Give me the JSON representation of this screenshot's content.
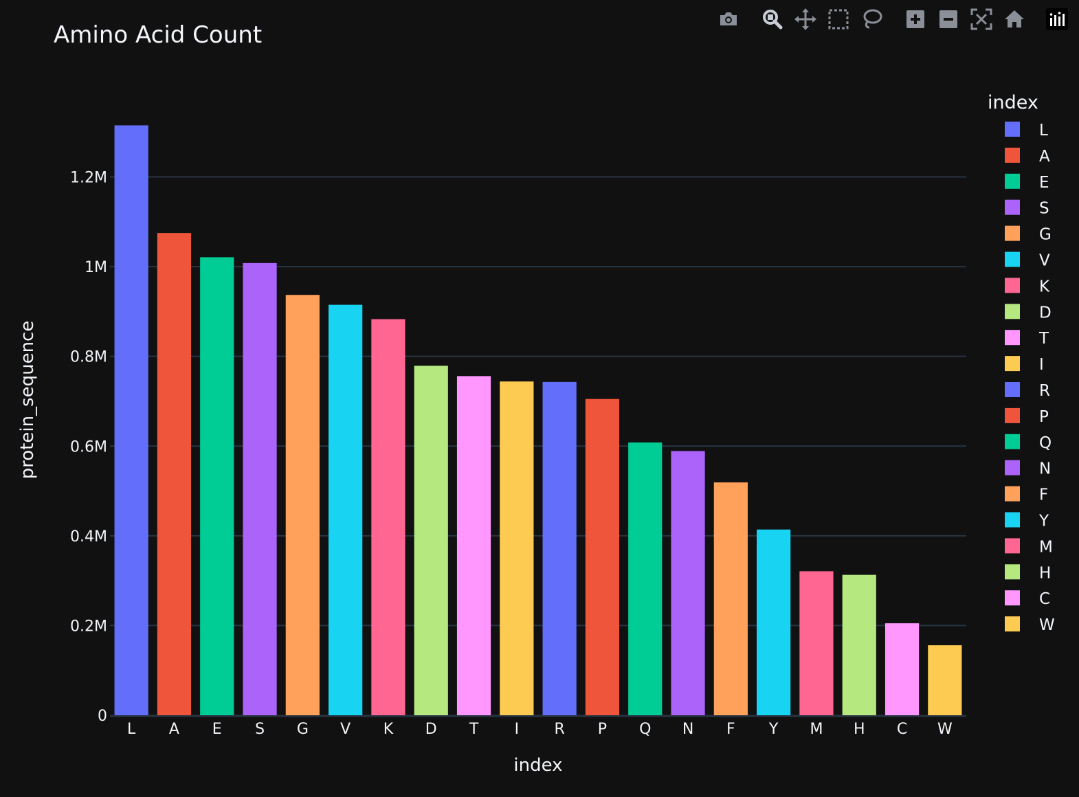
{
  "toolbar": {
    "buttons": [
      {
        "name": "camera-icon",
        "title": "Download plot as a png"
      },
      {
        "name": "zoom-icon",
        "title": "Zoom"
      },
      {
        "name": "pan-icon",
        "title": "Pan"
      },
      {
        "name": "box-select-icon",
        "title": "Box Select"
      },
      {
        "name": "lasso-select-icon",
        "title": "Lasso Select"
      },
      {
        "name": "zoom-in-icon",
        "title": "Zoom in"
      },
      {
        "name": "zoom-out-icon",
        "title": "Zoom out"
      },
      {
        "name": "autoscale-icon",
        "title": "Autoscale"
      },
      {
        "name": "home-icon",
        "title": "Reset axes"
      },
      {
        "name": "plotly-logo-icon",
        "title": "Produced with Plotly"
      }
    ]
  },
  "colors": {
    "background": "#111111",
    "grid": "#283442",
    "text": "#f2f5fa"
  },
  "chart_data": {
    "type": "bar",
    "title": "Amino Acid Count",
    "xlabel": "index",
    "ylabel": "protein_sequence",
    "categories": [
      "L",
      "A",
      "E",
      "S",
      "G",
      "V",
      "K",
      "D",
      "T",
      "I",
      "R",
      "P",
      "Q",
      "N",
      "F",
      "Y",
      "M",
      "H",
      "C",
      "W"
    ],
    "values": [
      1315000,
      1075000,
      1021000,
      1008000,
      937000,
      915000,
      883000,
      779000,
      756000,
      744000,
      743000,
      705000,
      608000,
      589000,
      519000,
      414000,
      321000,
      313000,
      205000,
      156000
    ],
    "bar_colors": [
      "#636efa",
      "#ef553b",
      "#00cc96",
      "#ab63fa",
      "#ffa15a",
      "#19d3f3",
      "#ff6692",
      "#b6e880",
      "#ff97ff",
      "#fecb52",
      "#636efa",
      "#ef553b",
      "#00cc96",
      "#ab63fa",
      "#ffa15a",
      "#19d3f3",
      "#ff6692",
      "#b6e880",
      "#ff97ff",
      "#fecb52"
    ],
    "ylim": [
      0,
      1380000
    ],
    "yticks": [
      0,
      200000,
      400000,
      600000,
      800000,
      1000000,
      1200000
    ],
    "ytick_labels": [
      "0",
      "0.2M",
      "0.4M",
      "0.6M",
      "0.8M",
      "1M",
      "1.2M"
    ],
    "grid": true,
    "legend": {
      "title": "index",
      "placement": "right"
    }
  }
}
